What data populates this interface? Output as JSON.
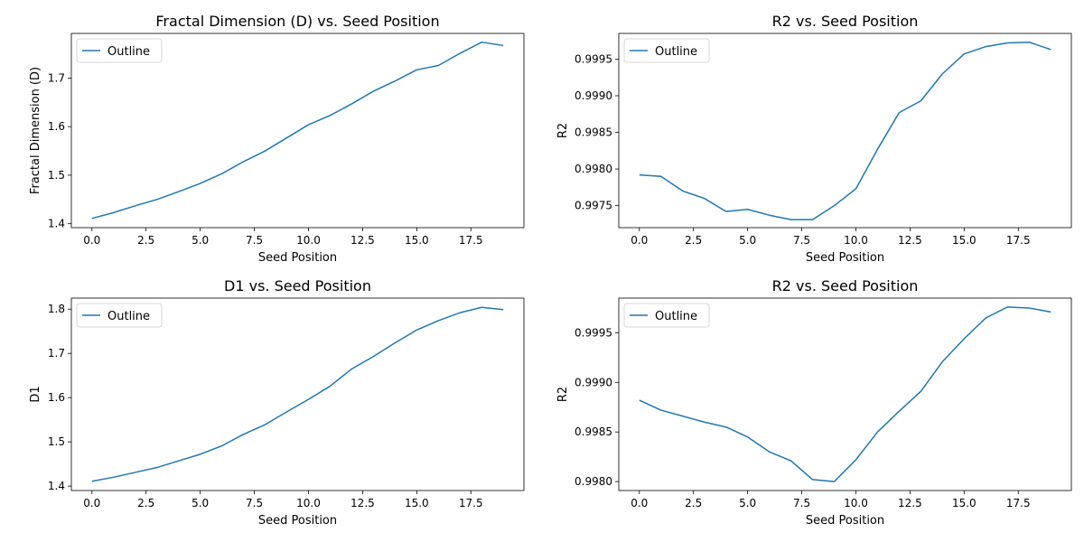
{
  "chart_data": [
    {
      "type": "line",
      "title": "Fractal Dimension (D) vs. Seed Position",
      "xlabel": "Seed Position",
      "ylabel": "Fractal Dimension (D)",
      "xlim": [
        -0.95,
        19.95
      ],
      "ylim": [
        1.392,
        1.792
      ],
      "xticks": [
        0,
        2.5,
        5,
        7.5,
        10,
        12.5,
        15,
        17.5
      ],
      "xtick_labels": [
        "0.0",
        "2.5",
        "5.0",
        "7.5",
        "10.0",
        "12.5",
        "15.0",
        "17.5"
      ],
      "yticks": [
        1.4,
        1.5,
        1.6,
        1.7
      ],
      "ytick_labels": [
        "1.4",
        "1.5",
        "1.6",
        "1.7"
      ],
      "legend_position": "top-left",
      "color": "#1f77b4",
      "series": [
        {
          "name": "Outline",
          "x": [
            0,
            1,
            2,
            3,
            4,
            5,
            6,
            7,
            8,
            9,
            10,
            11,
            12,
            13,
            14,
            15,
            16,
            17,
            18,
            19
          ],
          "y": [
            1.411,
            1.423,
            1.437,
            1.45,
            1.466,
            1.483,
            1.503,
            1.528,
            1.55,
            1.577,
            1.604,
            1.623,
            1.647,
            1.673,
            1.694,
            1.717,
            1.726,
            1.751,
            1.774,
            1.767
          ]
        }
      ]
    },
    {
      "type": "line",
      "title": "R2 vs. Seed Position",
      "xlabel": "Seed Position",
      "ylabel": "R2",
      "xlim": [
        -0.95,
        19.95
      ],
      "ylim": [
        0.9972,
        0.99985
      ],
      "xticks": [
        0,
        2.5,
        5,
        7.5,
        10,
        12.5,
        15,
        17.5
      ],
      "xtick_labels": [
        "0.0",
        "2.5",
        "5.0",
        "7.5",
        "10.0",
        "12.5",
        "15.0",
        "17.5"
      ],
      "yticks": [
        0.9975,
        0.998,
        0.9985,
        0.999,
        0.9995
      ],
      "ytick_labels": [
        "0.9975",
        "0.9980",
        "0.9985",
        "0.9990",
        "0.9995"
      ],
      "legend_position": "top-left",
      "color": "#1f77b4",
      "series": [
        {
          "name": "Outline",
          "x": [
            0,
            1,
            2,
            3,
            4,
            5,
            6,
            7,
            8,
            9,
            10,
            11,
            12,
            13,
            14,
            15,
            16,
            17,
            18,
            19
          ],
          "y": [
            0.99792,
            0.9979,
            0.9977,
            0.9976,
            0.99742,
            0.99745,
            0.99737,
            0.99731,
            0.99731,
            0.9975,
            0.99773,
            0.99827,
            0.99877,
            0.99893,
            0.9993,
            0.99957,
            0.99967,
            0.99972,
            0.99973,
            0.99963
          ]
        }
      ]
    },
    {
      "type": "line",
      "title": "D1 vs. Seed Position",
      "xlabel": "Seed Position",
      "ylabel": "D1",
      "xlim": [
        -0.95,
        19.95
      ],
      "ylim": [
        1.39,
        1.825
      ],
      "xticks": [
        0,
        2.5,
        5,
        7.5,
        10,
        12.5,
        15,
        17.5
      ],
      "xtick_labels": [
        "0.0",
        "2.5",
        "5.0",
        "7.5",
        "10.0",
        "12.5",
        "15.0",
        "17.5"
      ],
      "yticks": [
        1.4,
        1.5,
        1.6,
        1.7,
        1.8
      ],
      "ytick_labels": [
        "1.4",
        "1.5",
        "1.6",
        "1.7",
        "1.8"
      ],
      "legend_position": "top-left",
      "color": "#1f77b4",
      "series": [
        {
          "name": "Outline",
          "x": [
            0,
            1,
            2,
            3,
            4,
            5,
            6,
            7,
            8,
            9,
            10,
            11,
            12,
            13,
            14,
            15,
            16,
            17,
            18,
            19
          ],
          "y": [
            1.411,
            1.42,
            1.431,
            1.442,
            1.457,
            1.472,
            1.491,
            1.517,
            1.539,
            1.568,
            1.596,
            1.626,
            1.665,
            1.693,
            1.724,
            1.753,
            1.774,
            1.792,
            1.804,
            1.799
          ]
        }
      ]
    },
    {
      "type": "line",
      "title": "R2 vs. Seed Position",
      "xlabel": "Seed Position",
      "ylabel": "R2",
      "xlim": [
        -0.95,
        19.95
      ],
      "ylim": [
        0.99791,
        0.99985
      ],
      "xticks": [
        0,
        2.5,
        5,
        7.5,
        10,
        12.5,
        15,
        17.5
      ],
      "xtick_labels": [
        "0.0",
        "2.5",
        "5.0",
        "7.5",
        "10.0",
        "12.5",
        "15.0",
        "17.5"
      ],
      "yticks": [
        0.998,
        0.9985,
        0.999,
        0.9995
      ],
      "ytick_labels": [
        "0.9980",
        "0.9985",
        "0.9990",
        "0.9995"
      ],
      "legend_position": "top-left",
      "color": "#1f77b4",
      "series": [
        {
          "name": "Outline",
          "x": [
            0,
            1,
            2,
            3,
            4,
            5,
            6,
            7,
            8,
            9,
            10,
            11,
            12,
            13,
            14,
            15,
            16,
            17,
            18,
            19
          ],
          "y": [
            0.99882,
            0.99872,
            0.99866,
            0.9986,
            0.99855,
            0.99845,
            0.9983,
            0.99821,
            0.99802,
            0.998,
            0.99822,
            0.9985,
            0.99871,
            0.99891,
            0.99921,
            0.99944,
            0.99965,
            0.99976,
            0.99975,
            0.99971
          ]
        }
      ]
    }
  ]
}
